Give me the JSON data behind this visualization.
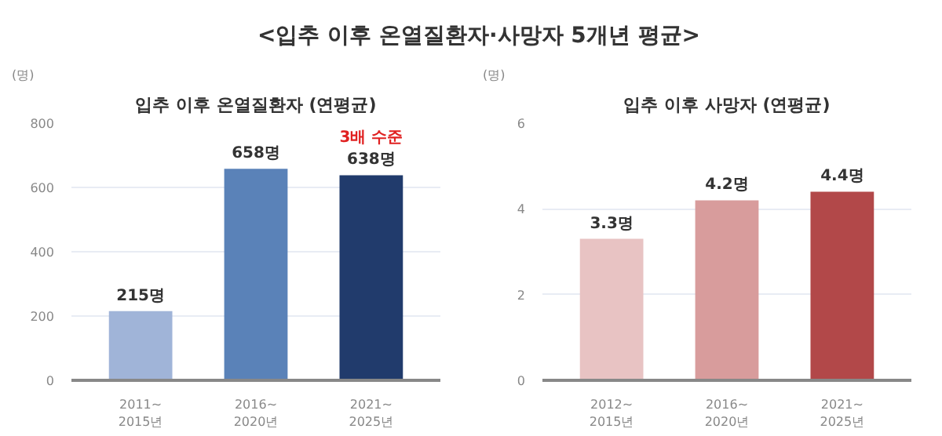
{
  "chart_data": [
    {
      "type": "bar",
      "title": "입추 이후 온열질환자 (연평균)",
      "ylabel": "(명)",
      "categories": [
        "2011~\n2015년",
        "2016~\n2020년",
        "2021~\n2025년"
      ],
      "values": [
        215,
        658,
        638
      ],
      "colors": [
        "#a0b4d8",
        "#5a82b8",
        "#213b6c"
      ],
      "value_labels": [
        "215명",
        "658명",
        "638명"
      ],
      "ylim": [
        0,
        800
      ],
      "yticks": [
        0,
        200,
        400,
        600,
        800
      ],
      "grid": "y",
      "annotations": [
        "<입추 이후 온열질환자·사망자 5개년 평균>",
        {
          "text": "3배 수준",
          "x": "2021~\n2025년",
          "y": 638
        }
      ]
    },
    {
      "type": "bar",
      "title": "입추 이후 사망자 (연평균)",
      "ylabel": "(명)",
      "categories": [
        "2012~\n2015년",
        "2016~\n2020년",
        "2021~\n2025년"
      ],
      "values": [
        3.3,
        4.2,
        4.4
      ],
      "colors": [
        "#e8c3c3",
        "#d89c9c",
        "#b24849"
      ],
      "value_labels": [
        "3.3명",
        "4.2명",
        "4.4명"
      ],
      "ylim": [
        0,
        6
      ],
      "yticks": [
        0,
        2,
        4,
        6
      ],
      "grid": "y"
    }
  ]
}
